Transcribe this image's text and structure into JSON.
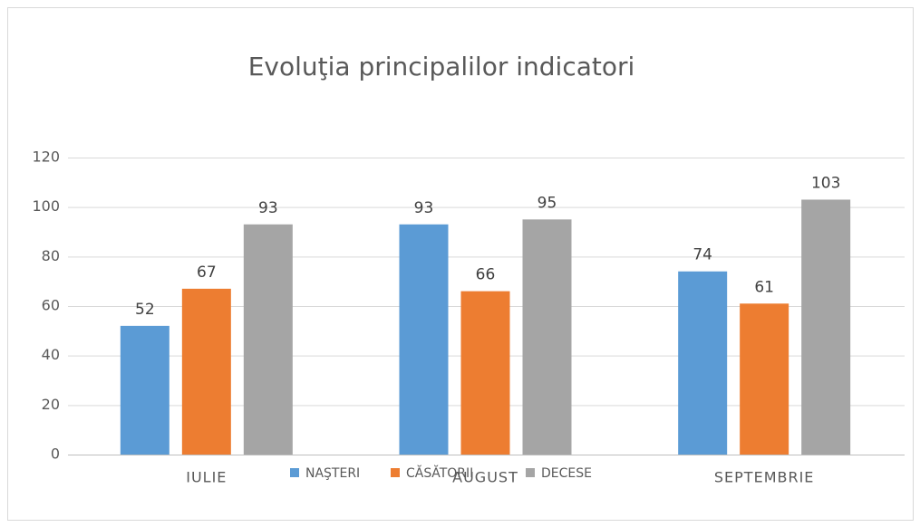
{
  "chart_data": {
    "type": "bar",
    "title": "Evoluţia principalilor indicatori",
    "categories": [
      "IULIE",
      "AUGUST",
      "SEPTEMBRIE"
    ],
    "series": [
      {
        "name": "NAŞTERI",
        "color": "#5b9bd5",
        "values": [
          52,
          93,
          74
        ]
      },
      {
        "name": "CĂSĂTORII",
        "color": "#ed7d31",
        "values": [
          67,
          66,
          61
        ]
      },
      {
        "name": "DECESE",
        "color": "#a5a5a5",
        "values": [
          93,
          95,
          103
        ]
      }
    ],
    "ylim": [
      0,
      120
    ],
    "yticks": [
      0,
      20,
      40,
      60,
      80,
      100,
      120
    ],
    "grid": true,
    "legend": "bottom"
  }
}
